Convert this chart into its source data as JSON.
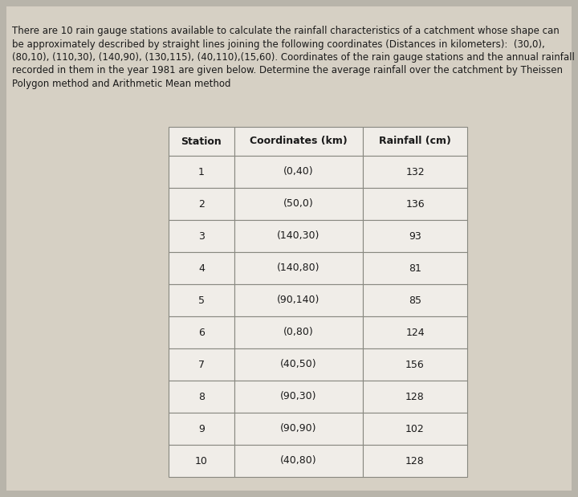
{
  "lines": [
    "There are 10 rain gauge stations available to calculate the rainfall characteristics of a catchment whose shape can",
    "be approximately described by straight lines joining the following coordinates (Distances in kilometers):  (30,0),",
    "(80,10), (110,30), (140,90), (130,115), (40,110),(15,60). Coordinates of the rain gauge stations and the annual rainfall",
    "recorded in them in the year 1981 are given below. Determine the average rainfall over the catchment by Theissen",
    "Polygon method and Arithmetic Mean method"
  ],
  "table_headers": [
    "Station",
    "Coordinates (km)",
    "Rainfall (cm)"
  ],
  "table_rows": [
    [
      "1",
      "(0,40)",
      "132"
    ],
    [
      "2",
      "(50,0)",
      "136"
    ],
    [
      "3",
      "(140,30)",
      "93"
    ],
    [
      "4",
      "(140,80)",
      "81"
    ],
    [
      "5",
      "(90,140)",
      "85"
    ],
    [
      "6",
      "(0,80)",
      "124"
    ],
    [
      "7",
      "(40,50)",
      "156"
    ],
    [
      "8",
      "(90,30)",
      "128"
    ],
    [
      "9",
      "(90,90)",
      "102"
    ],
    [
      "10",
      "(40,80)",
      "128"
    ]
  ],
  "bg_color": "#b8b4aa",
  "page_color": "#d6d0c4",
  "text_color": "#1a1a1a",
  "cell_bg": "#f0ede8",
  "border_color": "#888880",
  "para_fontsize": 8.5,
  "header_fontsize": 9.0,
  "cell_fontsize": 9.0,
  "fig_width": 7.2,
  "fig_height": 6.19,
  "dpi": 100
}
